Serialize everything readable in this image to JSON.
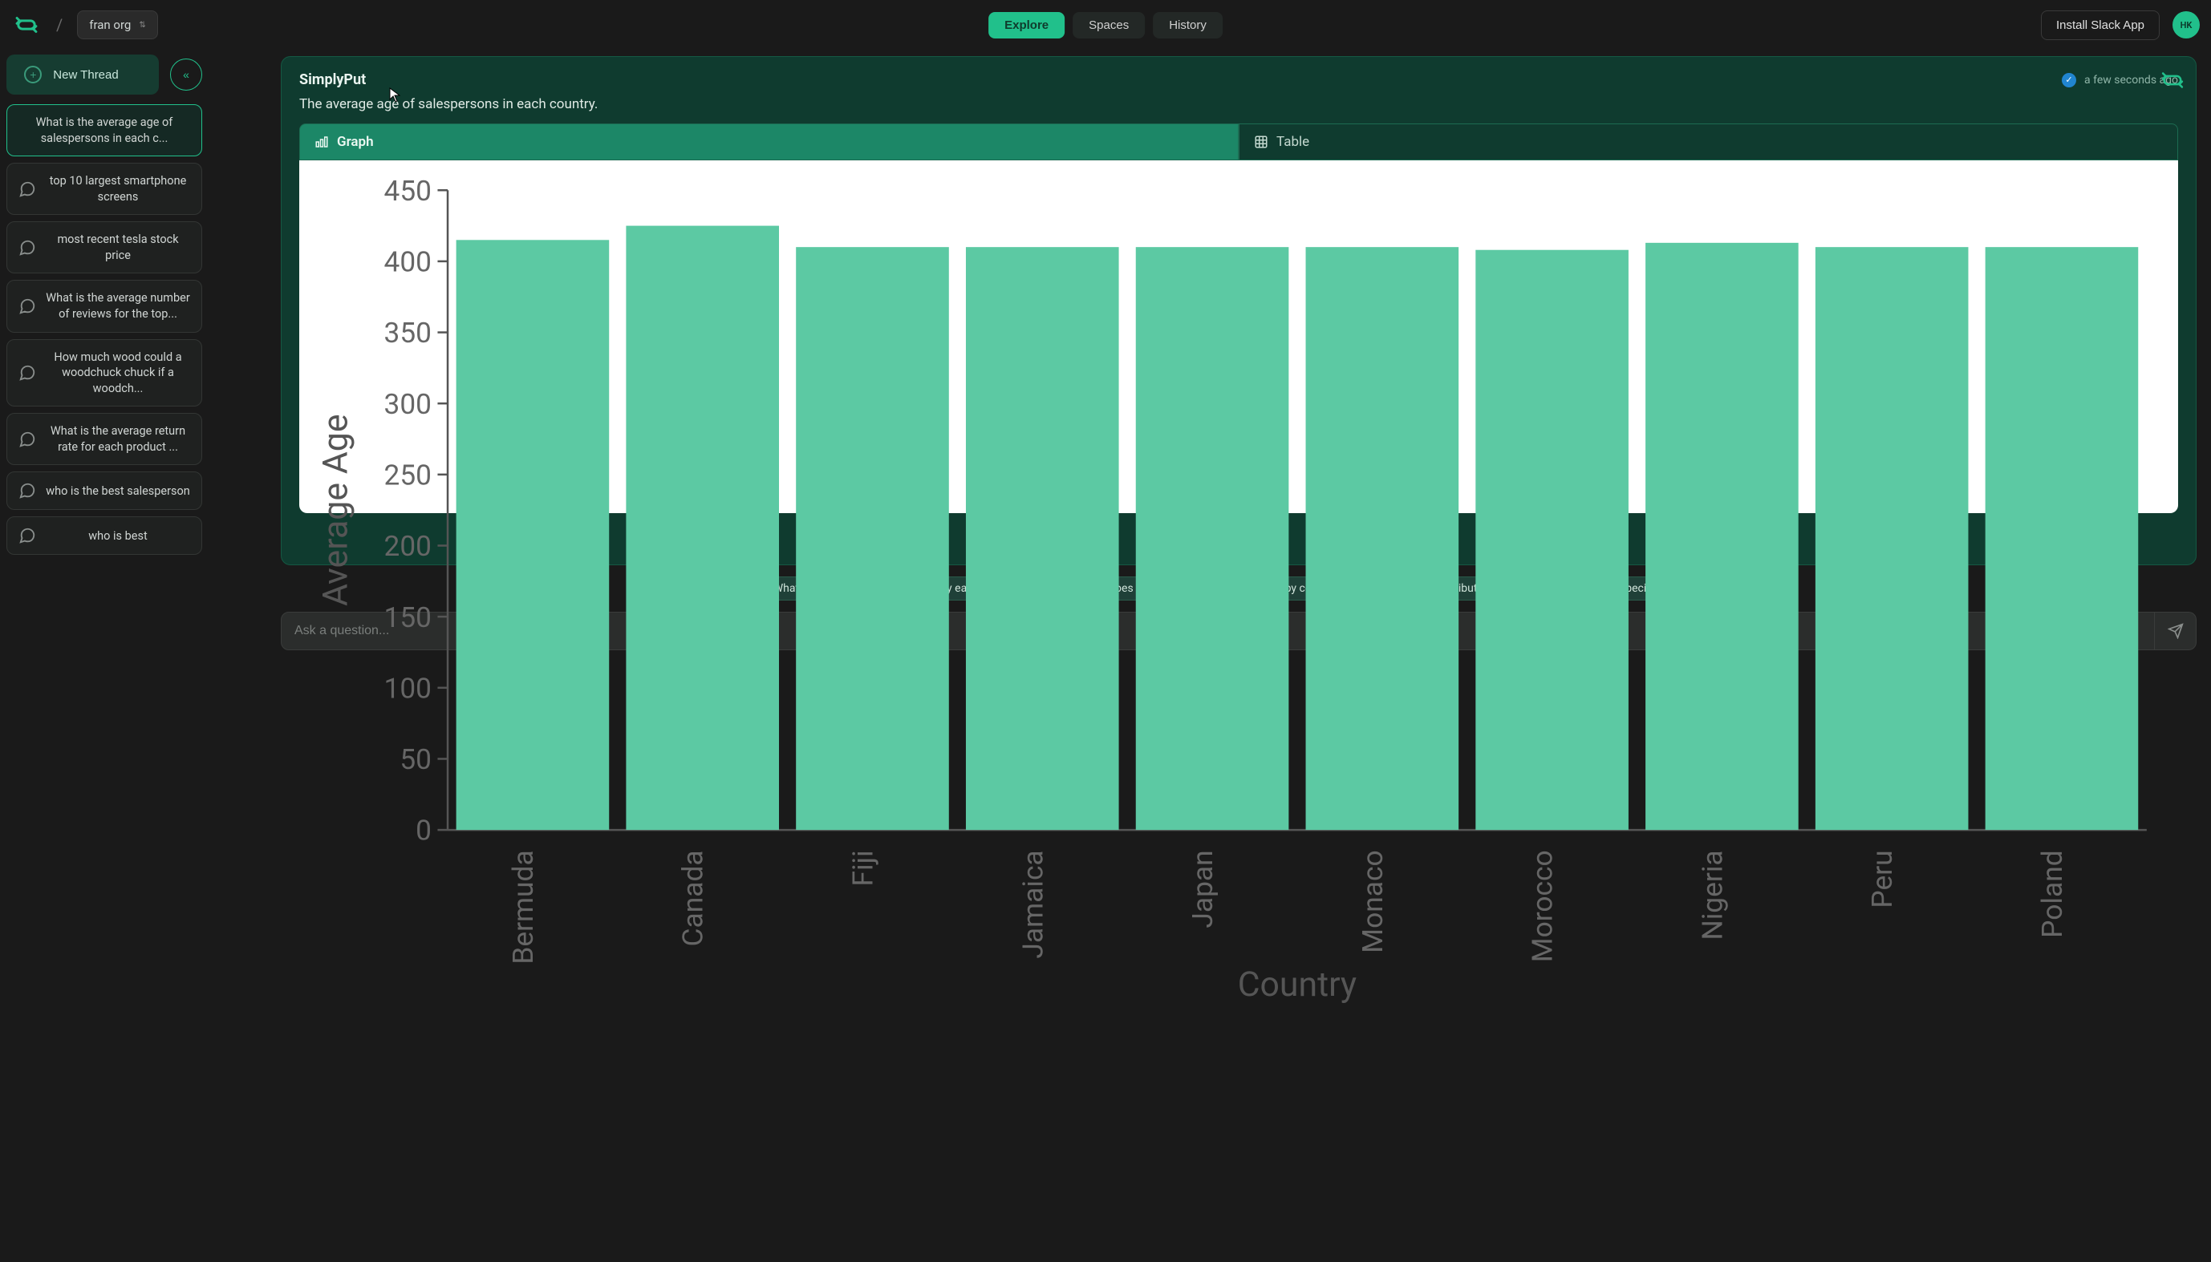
{
  "header": {
    "org_name": "fran org",
    "nav": {
      "explore": "Explore",
      "spaces": "Spaces",
      "history": "History"
    },
    "slack_button": "Install Slack App",
    "avatar_initials": "HK"
  },
  "sidebar": {
    "new_thread": "New Thread",
    "threads": [
      "What is the average age of salespersons in each c...",
      "top 10 largest smartphone screens",
      "most recent tesla stock price",
      "What is the average number of reviews for the top...",
      "How much wood could a woodchuck chuck if a woodch...",
      "What is the average return rate for each product ...",
      "who is the best salesperson",
      "who is best"
    ]
  },
  "response": {
    "source": "SimplyPut",
    "timestamp": "a few seconds ago",
    "description": "The average age of salespersons in each country.",
    "tabs": {
      "graph": "Graph",
      "table": "Table"
    }
  },
  "chart": {
    "type": "bar",
    "xlabel": "Country",
    "ylabel": "Average Age",
    "ylim": [
      0.0,
      450
    ],
    "yticks": [
      0.0,
      50,
      100,
      150,
      200,
      250,
      300,
      350,
      400,
      450
    ],
    "categories": [
      "Bermuda",
      "Canada",
      "Fiji",
      "Jamaica",
      "Japan",
      "Monaco",
      "Morocco",
      "Nigeria",
      "Peru",
      "Poland"
    ],
    "values": [
      415,
      425,
      410,
      410,
      410,
      410,
      408,
      413,
      410,
      410
    ],
    "bar_color": "#5cc9a3",
    "bar_width": 0.9,
    "background_color": "#ffffff",
    "axis_color": "#555555",
    "tick_color": "#666666",
    "label_fontsize": 17,
    "tick_fontsize": 14
  },
  "suggestions": [
    "What is the total number of sales by each salesperson?",
    "How does the average sale amount vary by country?",
    "What is the distribution of salesperson ages in a specific country?"
  ],
  "ask": {
    "placeholder": "Ask a question..."
  },
  "colors": {
    "accent": "#21c08b",
    "panel": "#0f3b2f",
    "panel_border": "#155843",
    "bg": "#1a1a1a"
  }
}
